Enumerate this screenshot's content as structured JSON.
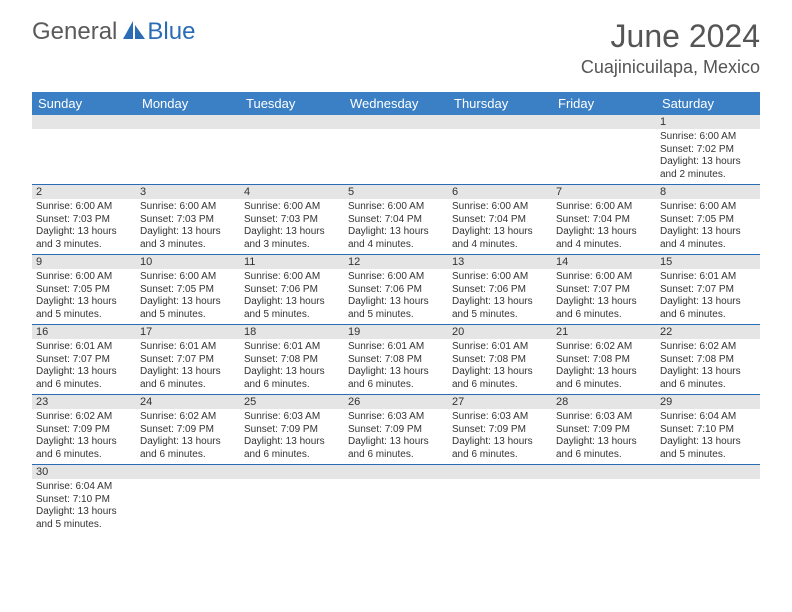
{
  "logo": {
    "general": "General",
    "blue": "Blue"
  },
  "title": "June 2024",
  "location": "Cuajinicuilapa, Mexico",
  "day_names": [
    "Sunday",
    "Monday",
    "Tuesday",
    "Wednesday",
    "Thursday",
    "Friday",
    "Saturday"
  ],
  "colors": {
    "header_bg": "#3b7fc4",
    "header_text": "#ffffff",
    "row_border": "#2a6db5",
    "daynum_bg": "#e5e5e5",
    "text": "#333333",
    "logo_gray": "#5a5a5a",
    "logo_blue": "#2a6db5"
  },
  "weeks": [
    {
      "nums": [
        "",
        "",
        "",
        "",
        "",
        "",
        "1"
      ],
      "cells": [
        "",
        "",
        "",
        "",
        "",
        "",
        ""
      ],
      "last": "Sunrise: 6:00 AM\nSunset: 7:02 PM\nDaylight: 13 hours and 2 minutes."
    },
    {
      "nums": [
        "2",
        "3",
        "4",
        "5",
        "6",
        "7",
        "8"
      ],
      "cells": [
        "Sunrise: 6:00 AM\nSunset: 7:03 PM\nDaylight: 13 hours and 3 minutes.",
        "Sunrise: 6:00 AM\nSunset: 7:03 PM\nDaylight: 13 hours and 3 minutes.",
        "Sunrise: 6:00 AM\nSunset: 7:03 PM\nDaylight: 13 hours and 3 minutes.",
        "Sunrise: 6:00 AM\nSunset: 7:04 PM\nDaylight: 13 hours and 4 minutes.",
        "Sunrise: 6:00 AM\nSunset: 7:04 PM\nDaylight: 13 hours and 4 minutes.",
        "Sunrise: 6:00 AM\nSunset: 7:04 PM\nDaylight: 13 hours and 4 minutes.",
        "Sunrise: 6:00 AM\nSunset: 7:05 PM\nDaylight: 13 hours and 4 minutes."
      ]
    },
    {
      "nums": [
        "9",
        "10",
        "11",
        "12",
        "13",
        "14",
        "15"
      ],
      "cells": [
        "Sunrise: 6:00 AM\nSunset: 7:05 PM\nDaylight: 13 hours and 5 minutes.",
        "Sunrise: 6:00 AM\nSunset: 7:05 PM\nDaylight: 13 hours and 5 minutes.",
        "Sunrise: 6:00 AM\nSunset: 7:06 PM\nDaylight: 13 hours and 5 minutes.",
        "Sunrise: 6:00 AM\nSunset: 7:06 PM\nDaylight: 13 hours and 5 minutes.",
        "Sunrise: 6:00 AM\nSunset: 7:06 PM\nDaylight: 13 hours and 5 minutes.",
        "Sunrise: 6:00 AM\nSunset: 7:07 PM\nDaylight: 13 hours and 6 minutes.",
        "Sunrise: 6:01 AM\nSunset: 7:07 PM\nDaylight: 13 hours and 6 minutes."
      ]
    },
    {
      "nums": [
        "16",
        "17",
        "18",
        "19",
        "20",
        "21",
        "22"
      ],
      "cells": [
        "Sunrise: 6:01 AM\nSunset: 7:07 PM\nDaylight: 13 hours and 6 minutes.",
        "Sunrise: 6:01 AM\nSunset: 7:07 PM\nDaylight: 13 hours and 6 minutes.",
        "Sunrise: 6:01 AM\nSunset: 7:08 PM\nDaylight: 13 hours and 6 minutes.",
        "Sunrise: 6:01 AM\nSunset: 7:08 PM\nDaylight: 13 hours and 6 minutes.",
        "Sunrise: 6:01 AM\nSunset: 7:08 PM\nDaylight: 13 hours and 6 minutes.",
        "Sunrise: 6:02 AM\nSunset: 7:08 PM\nDaylight: 13 hours and 6 minutes.",
        "Sunrise: 6:02 AM\nSunset: 7:08 PM\nDaylight: 13 hours and 6 minutes."
      ]
    },
    {
      "nums": [
        "23",
        "24",
        "25",
        "26",
        "27",
        "28",
        "29"
      ],
      "cells": [
        "Sunrise: 6:02 AM\nSunset: 7:09 PM\nDaylight: 13 hours and 6 minutes.",
        "Sunrise: 6:02 AM\nSunset: 7:09 PM\nDaylight: 13 hours and 6 minutes.",
        "Sunrise: 6:03 AM\nSunset: 7:09 PM\nDaylight: 13 hours and 6 minutes.",
        "Sunrise: 6:03 AM\nSunset: 7:09 PM\nDaylight: 13 hours and 6 minutes.",
        "Sunrise: 6:03 AM\nSunset: 7:09 PM\nDaylight: 13 hours and 6 minutes.",
        "Sunrise: 6:03 AM\nSunset: 7:09 PM\nDaylight: 13 hours and 6 minutes.",
        "Sunrise: 6:04 AM\nSunset: 7:10 PM\nDaylight: 13 hours and 5 minutes."
      ]
    },
    {
      "nums": [
        "30",
        "",
        "",
        "",
        "",
        "",
        ""
      ],
      "cells": [
        "Sunrise: 6:04 AM\nSunset: 7:10 PM\nDaylight: 13 hours and 5 minutes.",
        "",
        "",
        "",
        "",
        "",
        ""
      ]
    }
  ]
}
